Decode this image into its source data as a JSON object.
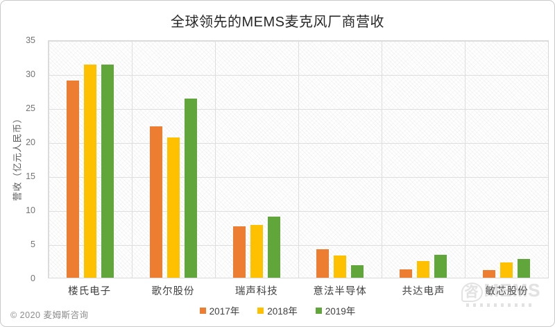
{
  "title": "全球领先的MEMS麦克风厂商营收",
  "copyright": "© 2020 麦姆斯咨询",
  "watermark": {
    "bubble_char": "咨",
    "main": "MEMS"
  },
  "chart_data": {
    "type": "bar",
    "title": "全球领先的MEMS麦克风厂商营收",
    "categories": [
      "楼氏电子",
      "歌尔股份",
      "瑞声科技",
      "意法半导体",
      "共达电声",
      "敏芯股份"
    ],
    "series": [
      {
        "name": "2017年",
        "color": "#ED7D31",
        "values": [
          29.1,
          22.4,
          7.6,
          4.2,
          1.2,
          1.1
        ]
      },
      {
        "name": "2018年",
        "color": "#FFC000",
        "values": [
          31.5,
          20.7,
          7.8,
          3.3,
          2.5,
          2.3
        ]
      },
      {
        "name": "2019年",
        "color": "#61A63B",
        "values": [
          31.5,
          26.5,
          9.0,
          1.8,
          3.4,
          2.8
        ]
      }
    ],
    "xlabel": "",
    "ylabel": "营收（亿元人民币）",
    "ylim": [
      0,
      35
    ],
    "yticks": [
      0,
      5,
      10,
      15,
      20,
      25,
      30,
      35
    ],
    "grid": true,
    "legend_position": "bottom"
  }
}
